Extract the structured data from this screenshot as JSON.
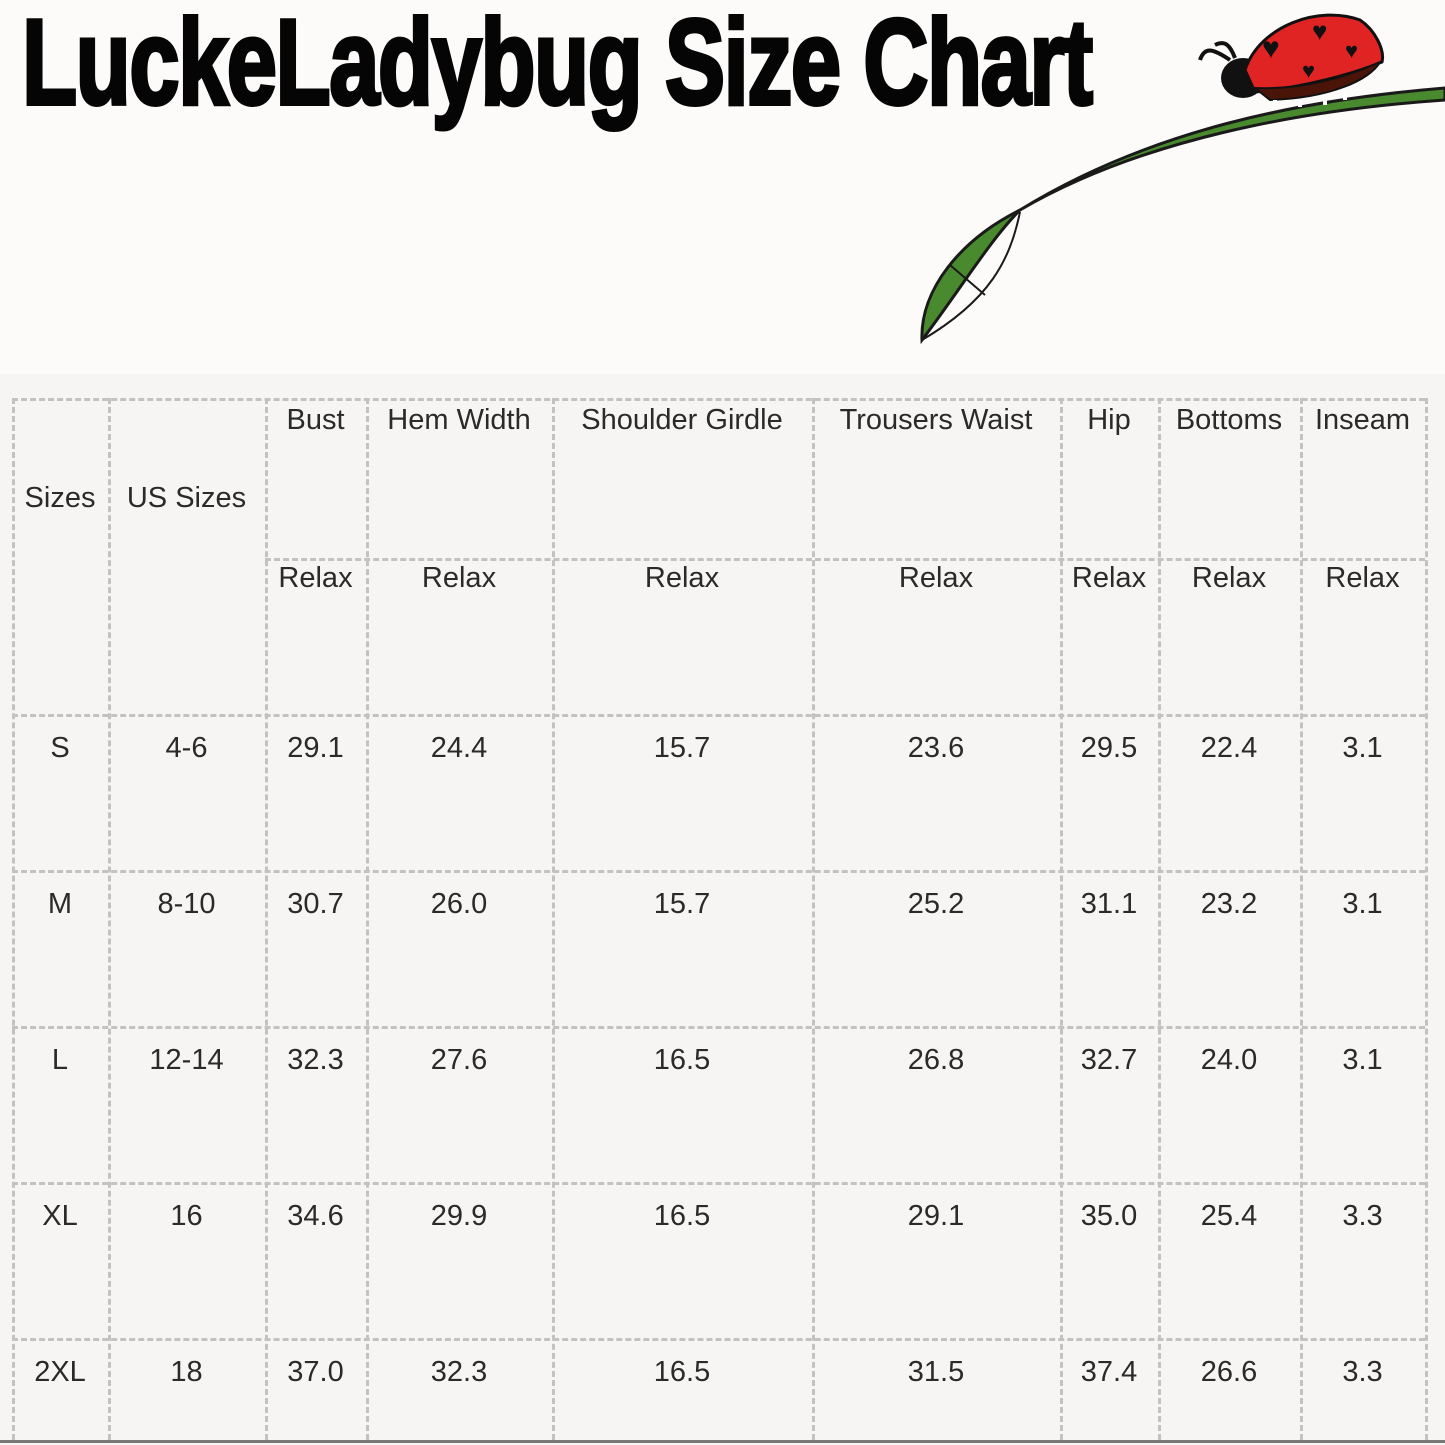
{
  "title": "LuckeLadybug Size Chart",
  "colors": {
    "leaf": "#4a8a2f",
    "ladybug": "#e02424",
    "text": "#2a2a2a",
    "panel": "#f7f5f4"
  },
  "illustration": "ladybug-on-leaf",
  "table": {
    "headers": [
      "Sizes",
      "US Sizes",
      "Bust",
      "Hem Width",
      "Shoulder Girdle",
      "Trousers Waist",
      "Hip",
      "Bottoms",
      "Inseam"
    ],
    "subheader": "Relax",
    "rows": [
      [
        "S",
        "4-6",
        "29.1",
        "24.4",
        "15.7",
        "23.6",
        "29.5",
        "22.4",
        "3.1"
      ],
      [
        "M",
        "8-10",
        "30.7",
        "26.0",
        "15.7",
        "25.2",
        "31.1",
        "23.2",
        "3.1"
      ],
      [
        "L",
        "12-14",
        "32.3",
        "27.6",
        "16.5",
        "26.8",
        "32.7",
        "24.0",
        "3.1"
      ],
      [
        "XL",
        "16",
        "34.6",
        "29.9",
        "16.5",
        "29.1",
        "35.0",
        "25.4",
        "3.3"
      ],
      [
        "2XL",
        "18",
        "37.0",
        "32.3",
        "16.5",
        "31.5",
        "37.4",
        "26.6",
        "3.3"
      ]
    ]
  }
}
